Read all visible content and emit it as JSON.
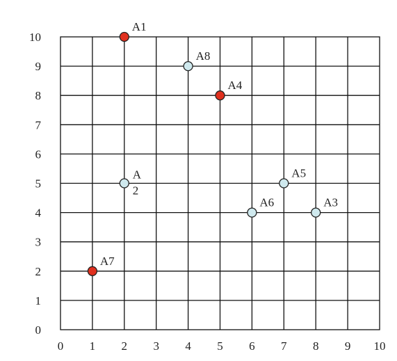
{
  "chart_data": {
    "type": "scatter",
    "title": "",
    "xlabel": "",
    "ylabel": "",
    "xlim": [
      0,
      10
    ],
    "ylim": [
      0,
      10
    ],
    "grid": true,
    "x_ticks": [
      "0",
      "1",
      "2",
      "3",
      "4",
      "5",
      "6",
      "7",
      "8",
      "9",
      "10"
    ],
    "y_ticks": [
      "0",
      "1",
      "2",
      "3",
      "4",
      "5",
      "6",
      "7",
      "8",
      "9",
      "10"
    ],
    "points": [
      {
        "label": "A1",
        "x": 2,
        "y": 10,
        "color": "#e0301e"
      },
      {
        "label": "A8",
        "x": 4,
        "y": 9,
        "color": "#cfe9ee"
      },
      {
        "label": "A4",
        "x": 5,
        "y": 8,
        "color": "#e0301e"
      },
      {
        "label": "A\n2",
        "x": 2,
        "y": 5,
        "color": "#cfe9ee"
      },
      {
        "label": "A5",
        "x": 7,
        "y": 5,
        "color": "#cfe9ee"
      },
      {
        "label": "A6",
        "x": 6,
        "y": 4,
        "color": "#cfe9ee"
      },
      {
        "label": "A3",
        "x": 8,
        "y": 4,
        "color": "#cfe9ee"
      },
      {
        "label": "A7",
        "x": 1,
        "y": 2,
        "color": "#e0301e"
      }
    ]
  }
}
